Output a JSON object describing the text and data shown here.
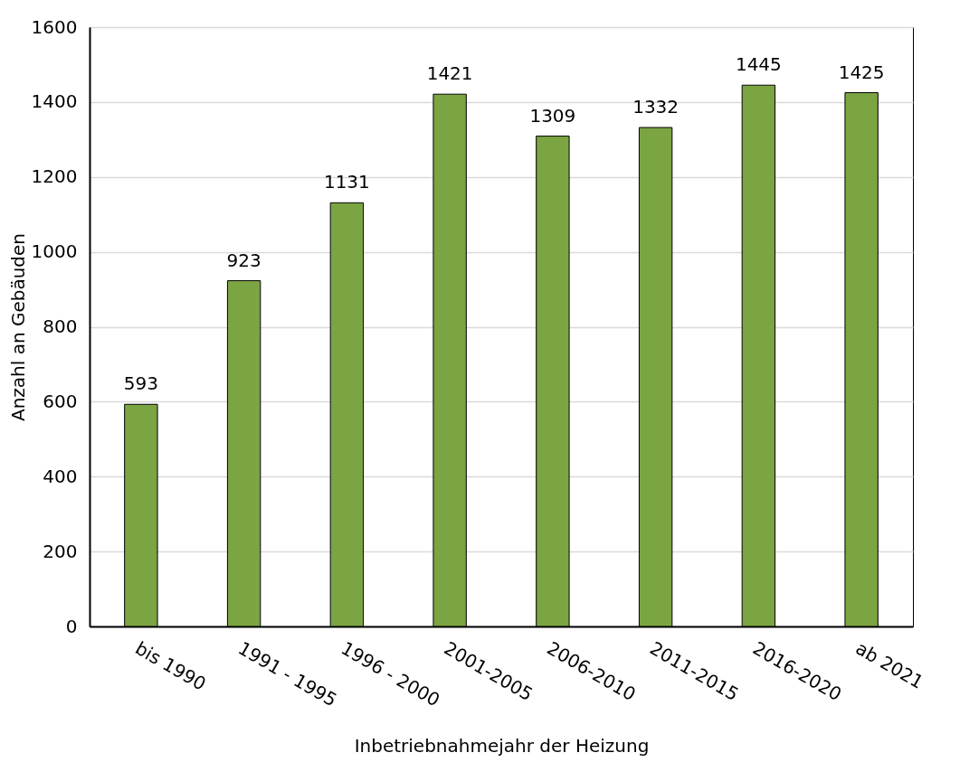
{
  "chart_data": {
    "type": "bar",
    "xlabel": "Inbetriebnahmejahr der Heizung",
    "ylabel": "Anzahl an Gebäuden",
    "categories": [
      "bis 1990",
      "1991 - 1995",
      "1996 - 2000",
      "2001-2005",
      "2006-2010",
      "2011-2015",
      "2016-2020",
      "ab 2021"
    ],
    "values": [
      593,
      923,
      1131,
      1421,
      1309,
      1332,
      1445,
      1425
    ],
    "color": "#7ba442",
    "ylim": [
      0,
      1600
    ],
    "yticks": [
      0,
      200,
      400,
      600,
      800,
      1000,
      1200,
      1400,
      1600
    ],
    "grid": "y",
    "data_labels": true
  }
}
